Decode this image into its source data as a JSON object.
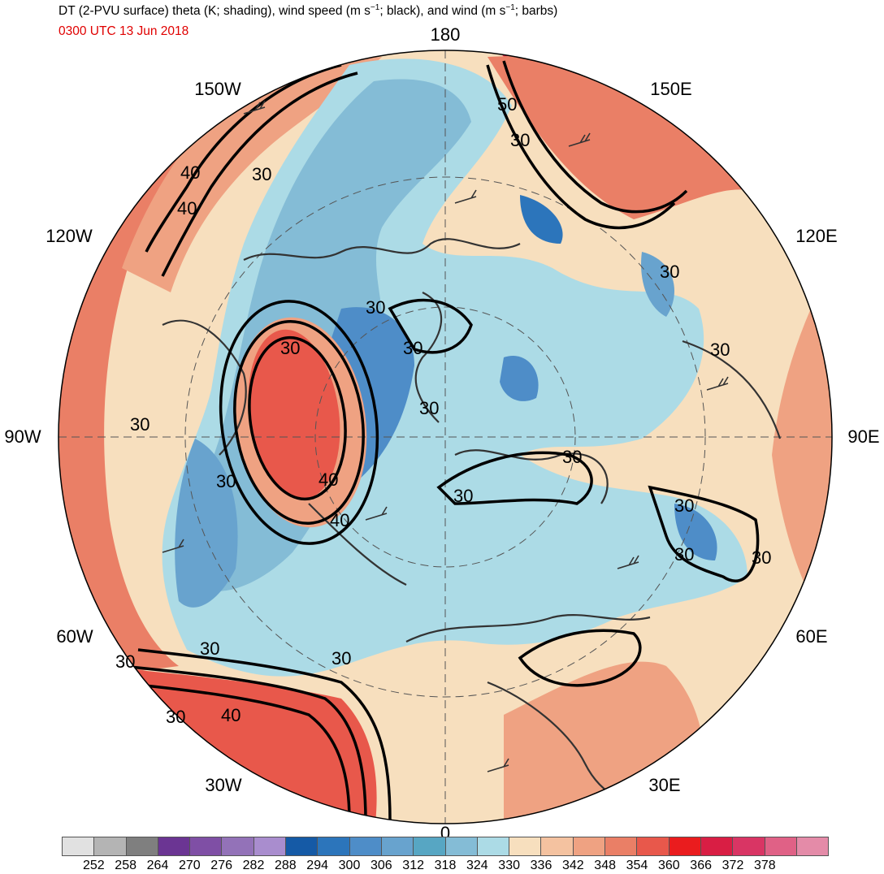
{
  "header": {
    "title_pre": "DT (2-PVU surface) theta (K; shading), wind speed (m s",
    "title_sup1": "−1",
    "title_mid": "; black), and wind (m s",
    "title_sup2": "−1",
    "title_post": "; barbs)",
    "valid_time": "0300 UTC 13 Jun 2018",
    "valid_time_color": "#e00000"
  },
  "map": {
    "projection": "north polar stereographic",
    "longitude_labels": {
      "lon_180": "180",
      "lon_150e": "150E",
      "lon_120e": "120E",
      "lon_90e": "90E",
      "lon_60e": "60E",
      "lon_30e": "30E",
      "lon_0": "0",
      "lon_30w": "30W",
      "lon_60w": "60W",
      "lon_90w": "90W",
      "lon_120w": "120W",
      "lon_150w": "150W"
    },
    "contour_labels": [
      "50",
      "30",
      "30",
      "40",
      "40",
      "30",
      "30",
      "30",
      "30",
      "30",
      "30",
      "30",
      "40",
      "40",
      "30",
      "30",
      "30",
      "30",
      "30",
      "30",
      "30",
      "30",
      "40",
      "30",
      "30"
    ],
    "graticule": "dashed",
    "coastline_color": "#333333",
    "contour_color": "#000000"
  },
  "colorbar": {
    "colors": [
      "#e1e1e1",
      "#b4b4b4",
      "#7f7f7f",
      "#6b3593",
      "#7f4fa5",
      "#9372b8",
      "#a98dce",
      "#155aa6",
      "#2c75bb",
      "#4e8dc8",
      "#68a3ce",
      "#57a6c3",
      "#84bcd6",
      "#acdbe6",
      "#f7dfbe",
      "#f4c2a0",
      "#efa282",
      "#ea7f66",
      "#e8584b",
      "#ea1c1e",
      "#d91e44",
      "#d93564",
      "#e06186",
      "#e48ba8"
    ],
    "labels": [
      "252",
      "258",
      "264",
      "270",
      "276",
      "282",
      "288",
      "294",
      "300",
      "306",
      "312",
      "318",
      "324",
      "330",
      "336",
      "342",
      "348",
      "354",
      "360",
      "366",
      "372",
      "378"
    ]
  }
}
